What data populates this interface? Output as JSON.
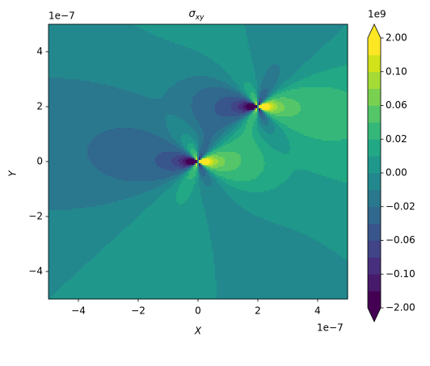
{
  "chart_data": {
    "type": "contour",
    "title": "σ",
    "title_subscript": "xy",
    "x_label": "X",
    "y_label": "Y",
    "x_offset_label": "1e−7",
    "y_offset_label": "1e−7",
    "xlim": [
      -5,
      5
    ],
    "ylim": [
      -5,
      5
    ],
    "xticks": [
      {
        "value": -4,
        "label": "−4"
      },
      {
        "value": -2,
        "label": "−2"
      },
      0,
      2,
      4
    ],
    "yticks": [
      {
        "value": -4,
        "label": "−4"
      },
      {
        "value": -2,
        "label": "−2"
      },
      0,
      2,
      4
    ],
    "colormap": "viridis",
    "colorbar": {
      "offset_label": "1e9",
      "levels": [
        -2,
        -0.12,
        -0.1,
        -0.08,
        -0.06,
        -0.04,
        -0.02,
        -0.01,
        0,
        0.01,
        0.02,
        0.04,
        0.06,
        0.08,
        0.1,
        0.12,
        2
      ],
      "colors": [
        "#440154",
        "#481a6c",
        "#472f7d",
        "#414487",
        "#39568c",
        "#31688e",
        "#2a788e",
        "#23888e",
        "#1f988b",
        "#22a884",
        "#35b779",
        "#54c568",
        "#7ad151",
        "#a5db36",
        "#d2e21b",
        "#fde725"
      ],
      "under_color": "#440154",
      "over_color": "#fde725",
      "ticks": [
        {
          "value": -2,
          "label": "−2.00"
        },
        {
          "value": -0.1,
          "label": "−0.10"
        },
        {
          "value": -0.06,
          "label": "−0.06"
        },
        {
          "value": -0.02,
          "label": "−0.02"
        },
        {
          "value": 0,
          "label": "0.00"
        },
        {
          "value": 0.02,
          "label": "0.02"
        },
        {
          "value": 0.06,
          "label": "0.06"
        },
        {
          "value": 0.1,
          "label": "0.10"
        },
        {
          "value": 2,
          "label": "2.00"
        }
      ]
    }
  }
}
